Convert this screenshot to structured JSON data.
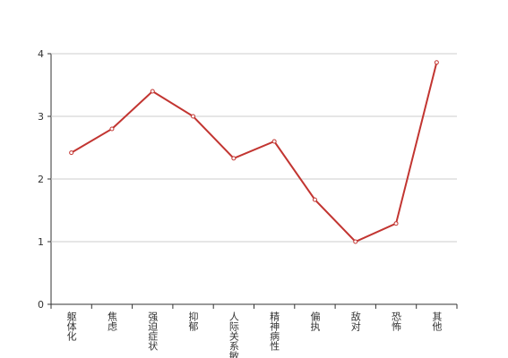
{
  "chart_data": {
    "type": "line",
    "categories": [
      "躯体化",
      "焦虑",
      "强迫症状",
      "抑郁",
      "人际关系敏感",
      "精神病性",
      "偏执",
      "敌对",
      "恐怖",
      "其他"
    ],
    "series": [
      {
        "color": "#c23531",
        "values": [
          2.42,
          2.8,
          3.4,
          3.0,
          2.33,
          2.6,
          1.67,
          1.0,
          1.29,
          3.86
        ]
      }
    ],
    "ylim": [
      0,
      4
    ],
    "yticks": [
      0,
      1,
      2,
      3,
      4
    ],
    "grid": true
  }
}
